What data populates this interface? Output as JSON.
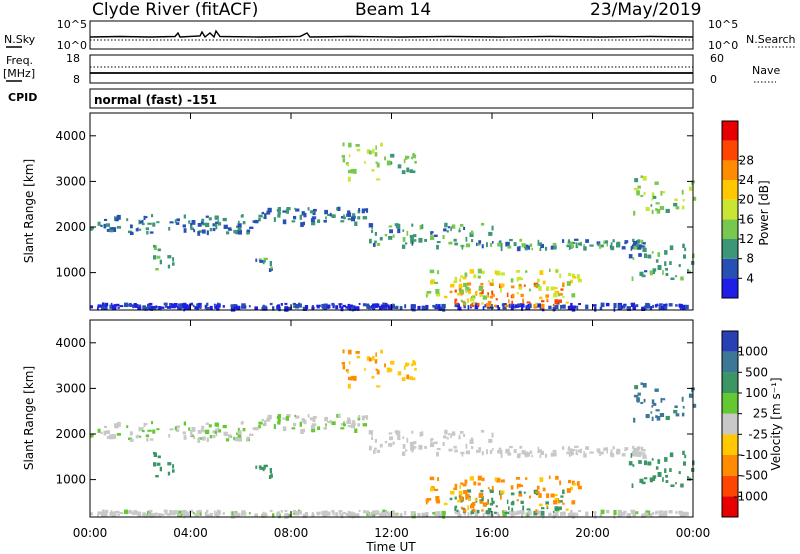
{
  "header": {
    "site": "Clyde River (fitACF)",
    "beam": "Beam 14",
    "date": "23/May/2019"
  },
  "nsky": {
    "left_label": "N.Sky",
    "right_label": "N.Search",
    "ticks": [
      "10^5",
      "10^0"
    ],
    "right_ticks": [
      "10^5",
      "10^0"
    ]
  },
  "freq": {
    "left_label_1": "Freq.",
    "left_label_2": "[MHz]",
    "left_ticks": [
      "18",
      "8"
    ],
    "right_label": "Nave",
    "right_ticks": [
      "60",
      "0"
    ]
  },
  "cpid": {
    "label": "CPID",
    "text": "normal (fast) -151"
  },
  "x_axis": {
    "label": "Time UT",
    "ticks": [
      "00:00",
      "04:00",
      "08:00",
      "12:00",
      "16:00",
      "20:00",
      "00:00"
    ]
  },
  "panels": {
    "ylabel": "Slant Range [km]",
    "yticks": [
      "1000",
      "2000",
      "3000",
      "4000"
    ],
    "power": {
      "colorbar_label": "Power [dB]",
      "colorbar_ticks": [
        "4",
        "8",
        "12",
        "16",
        "20",
        "24",
        "28"
      ],
      "colors": [
        "#1e1ee6",
        "#2850b4",
        "#3c9678",
        "#78c850",
        "#c8e632",
        "#ffc800",
        "#ff8c00",
        "#ff4600",
        "#e60000"
      ]
    },
    "velocity": {
      "colorbar_label": "Velocity [m s⁻¹]",
      "colorbar_ticks": [
        "1000",
        "500",
        "100",
        "25",
        "-25",
        "-100",
        "-500",
        "-1000"
      ],
      "colors": [
        "#2840b4",
        "#3c7896",
        "#3c9664",
        "#64c832",
        "#c8c8c8",
        "#ffc800",
        "#ff8c00",
        "#ff4600",
        "#e60000"
      ]
    }
  },
  "chart_data": {
    "type": "heatmap",
    "title": "Clyde River (fitACF) Beam 14 23/May/2019",
    "xlabel": "Time UT",
    "ylabel": "Slant Range [km]",
    "xlim_hours": [
      0,
      24
    ],
    "ylim_km": [
      180,
      4500
    ],
    "features": [
      {
        "name": "ground-band",
        "t_start": 0.0,
        "t_end": 24.0,
        "r_start": 200,
        "r_end": 300,
        "power_db": 4,
        "velocity": 10
      },
      {
        "name": "arc-2000km-early",
        "t_start": 0.0,
        "t_end": 6.5,
        "r_start": 1850,
        "r_end": 2250,
        "power_db": 8,
        "velocity": 20
      },
      {
        "name": "arc-2100km-morning",
        "t_start": 6.5,
        "t_end": 11.0,
        "r_start": 2050,
        "r_end": 2400,
        "power_db": 8,
        "velocity": 20
      },
      {
        "name": "descending-band",
        "t_start": 11.0,
        "t_end": 16.0,
        "r_start": 1550,
        "r_end": 2050,
        "power_db": 10,
        "velocity": 0
      },
      {
        "name": "arc-1600km-evening",
        "t_start": 16.0,
        "t_end": 22.0,
        "r_start": 1500,
        "r_end": 1700,
        "power_db": 10,
        "velocity": 0
      },
      {
        "name": "patch-3600km-noon",
        "t_start": 10.0,
        "t_end": 11.8,
        "r_start": 3000,
        "r_end": 3900,
        "power_db": 16,
        "velocity": -100
      },
      {
        "name": "patch-3300km-midday",
        "t_start": 11.8,
        "t_end": 13.0,
        "r_start": 3100,
        "r_end": 3600,
        "power_db": 12,
        "velocity": -80
      },
      {
        "name": "strong-echo-core",
        "t_start": 14.3,
        "t_end": 18.8,
        "r_start": 250,
        "r_end": 750,
        "power_db": 28,
        "velocity": 150
      },
      {
        "name": "strong-echo-envelope",
        "t_start": 13.3,
        "t_end": 19.6,
        "r_start": 300,
        "r_end": 1050,
        "power_db": 18,
        "velocity": -120
      },
      {
        "name": "patch-1300km-early",
        "t_start": 2.5,
        "t_end": 3.3,
        "r_start": 1050,
        "r_end": 1600,
        "power_db": 12,
        "velocity": 300
      },
      {
        "name": "patch-1200km-morning",
        "t_start": 6.5,
        "t_end": 7.2,
        "r_start": 1050,
        "r_end": 1300,
        "power_db": 10,
        "velocity": 200
      },
      {
        "name": "late-cluster-2800km",
        "t_start": 21.6,
        "t_end": 24.0,
        "r_start": 2300,
        "r_end": 3100,
        "power_db": 14,
        "velocity": 600
      },
      {
        "name": "late-cluster-1000km",
        "t_start": 21.4,
        "t_end": 24.0,
        "r_start": 800,
        "r_end": 1600,
        "power_db": 10,
        "velocity": 300
      }
    ]
  }
}
